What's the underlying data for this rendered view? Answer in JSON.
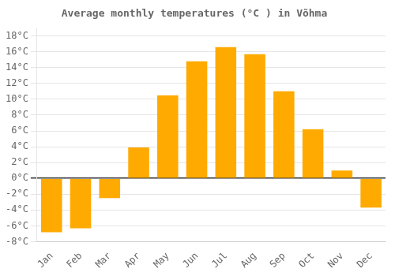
{
  "chart_data": {
    "type": "bar",
    "title": "Average monthly temperatures (°C ) in Võhma",
    "categories": [
      "Jan",
      "Feb",
      "Mar",
      "Apr",
      "May",
      "Jun",
      "Jul",
      "Aug",
      "Sep",
      "Oct",
      "Nov",
      "Dec"
    ],
    "values": [
      -6.8,
      -6.3,
      -2.5,
      3.9,
      10.5,
      14.8,
      16.6,
      15.7,
      11.0,
      6.2,
      1.0,
      -3.7
    ],
    "color": "#FFAA00",
    "ylim": [
      -8,
      19
    ],
    "yticks": [
      {
        "value": -8,
        "label": "-8°C"
      },
      {
        "value": -6,
        "label": "-6°C"
      },
      {
        "value": -4,
        "label": "-4°C"
      },
      {
        "value": -2,
        "label": "-2°C"
      },
      {
        "value": 0,
        "label": "0°C"
      },
      {
        "value": 2,
        "label": "2°C"
      },
      {
        "value": 4,
        "label": "4°C"
      },
      {
        "value": 6,
        "label": "6°C"
      },
      {
        "value": 8,
        "label": "8°C"
      },
      {
        "value": 10,
        "label": "10°C"
      },
      {
        "value": 12,
        "label": "12°C"
      },
      {
        "value": 14,
        "label": "14°C"
      },
      {
        "value": 16,
        "label": "16°C"
      },
      {
        "value": 18,
        "label": "18°C"
      }
    ],
    "grid": true
  }
}
